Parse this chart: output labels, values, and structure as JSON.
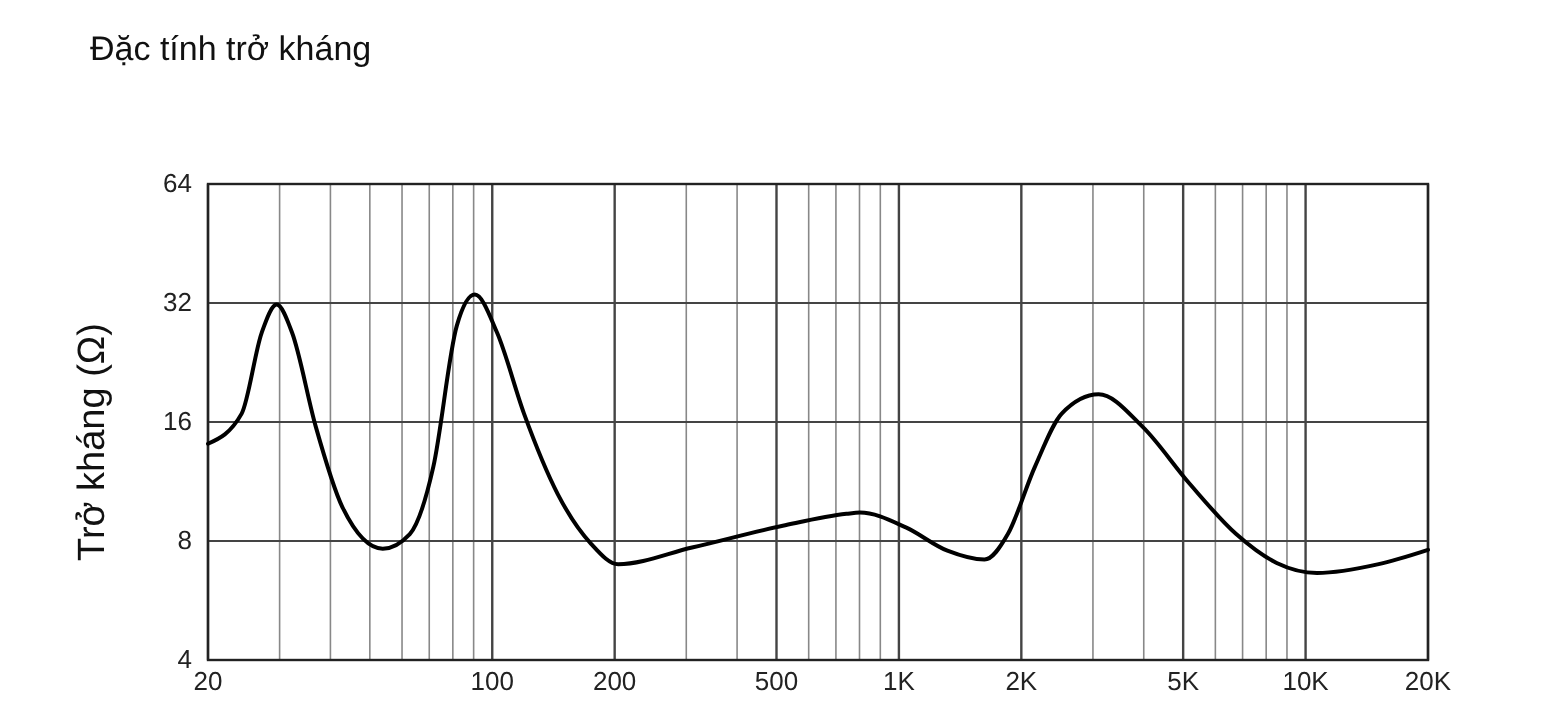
{
  "chart_data": {
    "type": "line",
    "title": "Đặc tính trở kháng",
    "ylabel": "Trở kháng (Ω)",
    "log": "xy",
    "grid": true,
    "marker": "none",
    "line_style": "solid",
    "xlim": [
      20,
      20000
    ],
    "ylim": [
      4,
      64
    ],
    "xticks": [
      20,
      {
        "value": 30,
        "label": null
      },
      {
        "value": 40,
        "label": null
      },
      {
        "value": 50,
        "label": null
      },
      {
        "value": 60,
        "label": null
      },
      {
        "value": 70,
        "label": null
      },
      {
        "value": 80,
        "label": null
      },
      {
        "value": 90,
        "label": null
      },
      100,
      200,
      {
        "value": 300,
        "label": null
      },
      {
        "value": 400,
        "label": null
      },
      500,
      {
        "value": 600,
        "label": null
      },
      {
        "value": 700,
        "label": null
      },
      {
        "value": 800,
        "label": null
      },
      {
        "value": 900,
        "label": null
      },
      {
        "value": 1000,
        "label": "1K"
      },
      {
        "value": 2000,
        "label": "2K"
      },
      {
        "value": 3000,
        "label": null
      },
      {
        "value": 4000,
        "label": null
      },
      {
        "value": 5000,
        "label": "5K"
      },
      {
        "value": 6000,
        "label": null
      },
      {
        "value": 7000,
        "label": null
      },
      {
        "value": 8000,
        "label": null
      },
      {
        "value": 9000,
        "label": null
      },
      {
        "value": 10000,
        "label": "10K"
      },
      {
        "value": 20000,
        "label": "20K"
      }
    ],
    "yticks": [
      4,
      8,
      16,
      32,
      64
    ],
    "series": [
      {
        "color": "#000000",
        "x": [
          20,
          24.2,
          27.1,
          29.5,
          32.2,
          36.8,
          42.8,
          53.8,
          62.7,
          71.6,
          81.8,
          90.6,
          102.8,
          119.7,
          145,
          175,
          204,
          310,
          518,
          743,
          802,
          1040,
          1316,
          1623,
          1853,
          2158,
          2514,
          3098,
          3965,
          5174,
          6750,
          8490,
          10670,
          15030,
          20000
        ],
        "values": [
          14.1,
          16.8,
          26.9,
          31.7,
          26.9,
          15.6,
          9.75,
          7.65,
          8.33,
          12.3,
          28,
          33.6,
          26.9,
          16.8,
          10.5,
          7.87,
          6.99,
          7.7,
          8.74,
          9.37,
          9.44,
          8.66,
          7.56,
          7.18,
          8.33,
          12.3,
          16.8,
          18.8,
          15.6,
          11.2,
          8.33,
          7.04,
          6.64,
          6.98,
          7.6
        ]
      }
    ]
  }
}
